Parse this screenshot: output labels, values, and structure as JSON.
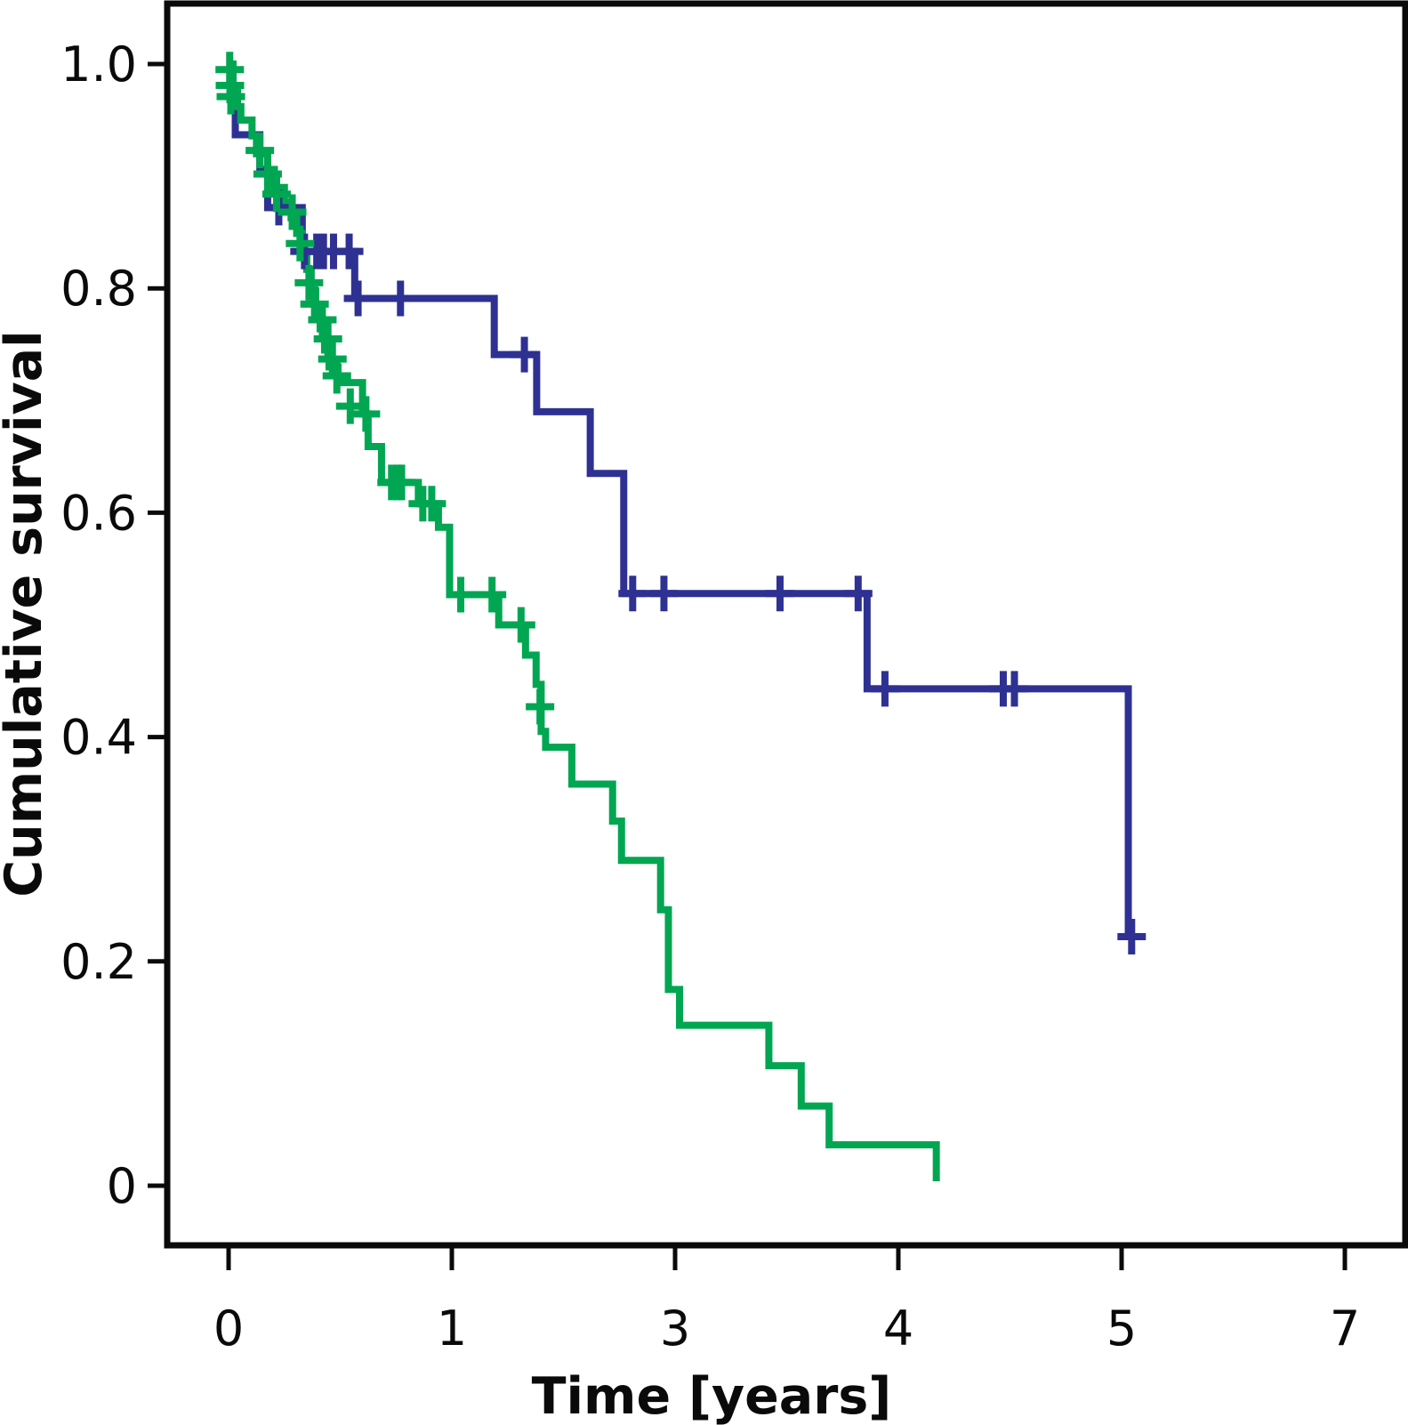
{
  "chart_data": {
    "type": "line",
    "subtype": "kaplan-meier-step-survival",
    "title": "",
    "xlabel": "Time [years]",
    "ylabel": "Cumulative survival",
    "x_tick_labels": [
      "0",
      "1",
      "3",
      "4",
      "5",
      "7"
    ],
    "x_tick_values": [
      0,
      1,
      3,
      4,
      5,
      7
    ],
    "x_axis_note": "six evenly spaced ticks labeled 0,1,3,4,5,7; curve x-coordinates are expressed in this label space",
    "y_tick_labels": [
      "0",
      "0.2",
      "0.4",
      "0.6",
      "0.8",
      "1.0"
    ],
    "y_tick_values": [
      0,
      0.2,
      0.4,
      0.6,
      0.8,
      1.0
    ],
    "ylim": [
      0,
      1.0
    ],
    "grid": false,
    "legend": "none",
    "series": [
      {
        "name": "group-blue",
        "color": "#2e3192",
        "start": [
          0.0,
          0.97
        ],
        "steps": [
          [
            0.03,
            0.937
          ],
          [
            0.14,
            0.906
          ],
          [
            0.175,
            0.872
          ],
          [
            0.33,
            0.833
          ],
          [
            0.565,
            0.791
          ],
          [
            1.38,
            0.741
          ],
          [
            1.76,
            0.69
          ],
          [
            2.24,
            0.635
          ],
          [
            2.54,
            0.528
          ],
          [
            3.86,
            0.443
          ],
          [
            5.06,
            0.222
          ]
        ],
        "end_x": 5.06,
        "censors": [
          [
            0.225,
            0.872
          ],
          [
            0.34,
            0.833
          ],
          [
            0.395,
            0.833
          ],
          [
            0.425,
            0.833
          ],
          [
            0.47,
            0.833
          ],
          [
            0.54,
            0.833
          ],
          [
            0.58,
            0.791
          ],
          [
            0.77,
            0.791
          ],
          [
            1.65,
            0.741
          ],
          [
            2.62,
            0.528
          ],
          [
            2.9,
            0.528
          ],
          [
            3.47,
            0.528
          ],
          [
            3.82,
            0.528
          ],
          [
            3.94,
            0.443
          ],
          [
            4.47,
            0.443
          ],
          [
            4.52,
            0.443
          ],
          [
            5.09,
            0.222
          ]
        ]
      },
      {
        "name": "group-green",
        "color": "#00a651",
        "start": [
          0.0,
          1.0
        ],
        "steps": [
          [
            0.02,
            0.975
          ],
          [
            0.04,
            0.962
          ],
          [
            0.055,
            0.95
          ],
          [
            0.105,
            0.936
          ],
          [
            0.125,
            0.92
          ],
          [
            0.175,
            0.906
          ],
          [
            0.205,
            0.89
          ],
          [
            0.25,
            0.877
          ],
          [
            0.28,
            0.863
          ],
          [
            0.305,
            0.849
          ],
          [
            0.33,
            0.833
          ],
          [
            0.35,
            0.817
          ],
          [
            0.37,
            0.798
          ],
          [
            0.39,
            0.78
          ],
          [
            0.41,
            0.764
          ],
          [
            0.43,
            0.745
          ],
          [
            0.45,
            0.73
          ],
          [
            0.49,
            0.716
          ],
          [
            0.6,
            0.688
          ],
          [
            0.625,
            0.659
          ],
          [
            0.685,
            0.627
          ],
          [
            0.85,
            0.608
          ],
          [
            0.94,
            0.587
          ],
          [
            0.99,
            0.527
          ],
          [
            1.42,
            0.5
          ],
          [
            1.66,
            0.473
          ],
          [
            1.755,
            0.447
          ],
          [
            1.8,
            0.405
          ],
          [
            1.84,
            0.391
          ],
          [
            2.075,
            0.358
          ],
          [
            2.44,
            0.325
          ],
          [
            2.52,
            0.29
          ],
          [
            2.87,
            0.246
          ],
          [
            2.94,
            0.175
          ],
          [
            3.02,
            0.143
          ],
          [
            3.42,
            0.107
          ],
          [
            3.565,
            0.071
          ],
          [
            3.69,
            0.0365
          ],
          [
            4.17,
            0.004
          ]
        ],
        "end_x": 4.17,
        "censors": [
          [
            0.005,
            0.995
          ],
          [
            0.006,
            0.981
          ],
          [
            0.01,
            0.971
          ],
          [
            0.14,
            0.923
          ],
          [
            0.175,
            0.902
          ],
          [
            0.215,
            0.884
          ],
          [
            0.285,
            0.868
          ],
          [
            0.32,
            0.84
          ],
          [
            0.36,
            0.805
          ],
          [
            0.385,
            0.786
          ],
          [
            0.42,
            0.772
          ],
          [
            0.445,
            0.755
          ],
          [
            0.465,
            0.737
          ],
          [
            0.485,
            0.722
          ],
          [
            0.545,
            0.695
          ],
          [
            0.615,
            0.688
          ],
          [
            0.73,
            0.627
          ],
          [
            0.757,
            0.627
          ],
          [
            0.775,
            0.627
          ],
          [
            0.87,
            0.608
          ],
          [
            0.91,
            0.608
          ],
          [
            1.08,
            0.527
          ],
          [
            1.36,
            0.527
          ],
          [
            1.62,
            0.5
          ],
          [
            1.79,
            0.427
          ]
        ]
      }
    ]
  },
  "colors": {
    "axis": "#0a0a0a",
    "background": "#ffffff",
    "blue_series": "#2e3192",
    "green_series": "#00a651"
  }
}
